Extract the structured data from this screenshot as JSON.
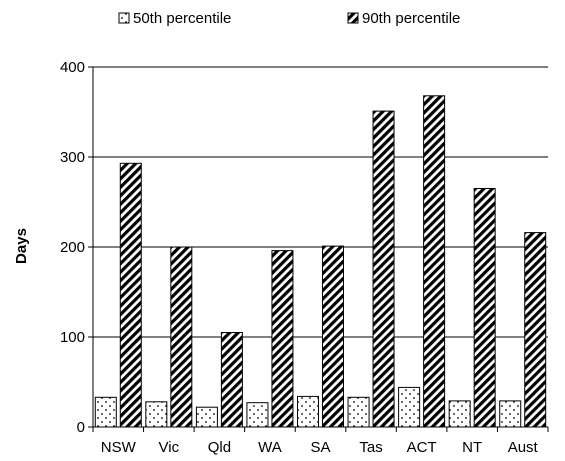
{
  "chart_data": {
    "type": "bar",
    "categories": [
      "NSW",
      "Vic",
      "Qld",
      "WA",
      "SA",
      "Tas",
      "ACT",
      "NT",
      "Aust"
    ],
    "series": [
      {
        "name": "50th percentile",
        "values": [
          33,
          28,
          22,
          27,
          34,
          33,
          44,
          29,
          29
        ],
        "pattern": "dots"
      },
      {
        "name": "90th percentile",
        "values": [
          293,
          200,
          105,
          196,
          201,
          351,
          368,
          265,
          216
        ],
        "pattern": "diagonal-hatch"
      }
    ],
    "title": "",
    "xlabel": "",
    "ylabel": "Days",
    "ylim": [
      0,
      400
    ],
    "yticks": [
      0,
      100,
      200,
      300,
      400
    ],
    "grid": "horizontal",
    "legend_position": "top"
  }
}
